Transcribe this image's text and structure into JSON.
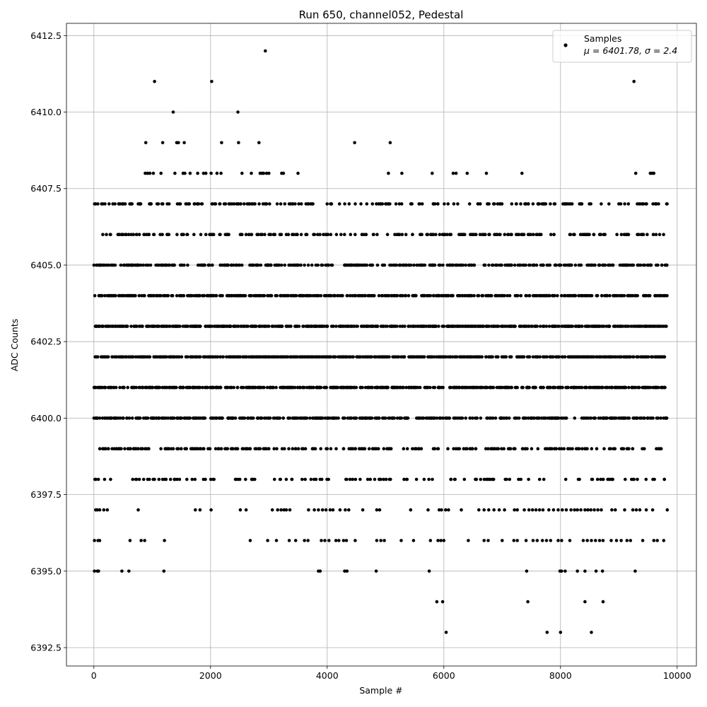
{
  "chart_data": {
    "type": "scatter",
    "title": "Run 650, channel052, Pedestal",
    "xlabel": "Sample #",
    "ylabel": "ADC Counts",
    "xlim": [
      -470,
      10330
    ],
    "ylim": [
      6391.9,
      6412.9
    ],
    "xticks": [
      0,
      2000,
      4000,
      6000,
      8000,
      10000
    ],
    "yticks": [
      6392.5,
      6395.0,
      6397.5,
      6400.0,
      6402.5,
      6405.0,
      6407.5,
      6410.0,
      6412.5
    ],
    "xtick_labels": [
      "0",
      "2000",
      "4000",
      "6000",
      "8000",
      "10000"
    ],
    "ytick_labels": [
      "6392.5",
      "6395.0",
      "6397.5",
      "6400.0",
      "6402.5",
      "6405.0",
      "6407.5",
      "6410.0",
      "6412.5"
    ],
    "grid": true,
    "legend_placement": "top-right",
    "marker_color": "#000000",
    "series": [
      {
        "name": "Samples",
        "label_line2": "μ = 6401.78, σ = 2.4",
        "points": [
          [
            2940,
            6412
          ],
          [
            1040,
            6411
          ],
          [
            2020,
            6411
          ],
          [
            9260,
            6411
          ],
          [
            1360,
            6410
          ],
          [
            2470,
            6410
          ],
          [
            890,
            6409
          ],
          [
            1180,
            6409
          ],
          [
            1420,
            6409
          ],
          [
            1450,
            6409
          ],
          [
            1550,
            6409
          ],
          [
            2190,
            6409
          ],
          [
            2480,
            6409
          ],
          [
            2830,
            6409
          ],
          [
            4470,
            6409
          ],
          [
            5080,
            6409
          ],
          [
            880,
            6408
          ],
          [
            920,
            6408
          ],
          [
            960,
            6408
          ],
          [
            1020,
            6408
          ],
          [
            1150,
            6408
          ],
          [
            1390,
            6408
          ],
          [
            1530,
            6408
          ],
          [
            1560,
            6408
          ],
          [
            1650,
            6408
          ],
          [
            1780,
            6408
          ],
          [
            1880,
            6408
          ],
          [
            1920,
            6408
          ],
          [
            2010,
            6408
          ],
          [
            2110,
            6408
          ],
          [
            2180,
            6408
          ],
          [
            2540,
            6408
          ],
          [
            2700,
            6408
          ],
          [
            2850,
            6408
          ],
          [
            2880,
            6408
          ],
          [
            2910,
            6408
          ],
          [
            2960,
            6408
          ],
          [
            3000,
            6408
          ],
          [
            3220,
            6408
          ],
          [
            3250,
            6408
          ],
          [
            3500,
            6408
          ],
          [
            5050,
            6408
          ],
          [
            5280,
            6408
          ],
          [
            5800,
            6408
          ],
          [
            6160,
            6408
          ],
          [
            6210,
            6408
          ],
          [
            6400,
            6408
          ],
          [
            6730,
            6408
          ],
          [
            7340,
            6408
          ],
          [
            9290,
            6408
          ],
          [
            9540,
            6408
          ],
          [
            9570,
            6408
          ],
          [
            9600,
            6408
          ],
          [
            6040,
            6393
          ],
          [
            7770,
            6393
          ],
          [
            8000,
            6393
          ],
          [
            8530,
            6393
          ],
          [
            5880,
            6394
          ],
          [
            5980,
            6394
          ],
          [
            7440,
            6394
          ],
          [
            8420,
            6394
          ],
          [
            8730,
            6394
          ],
          [
            10,
            6395
          ],
          [
            60,
            6395
          ],
          [
            80,
            6395
          ],
          [
            480,
            6395
          ],
          [
            600,
            6395
          ],
          [
            1200,
            6395
          ],
          [
            3850,
            6395
          ],
          [
            3880,
            6395
          ],
          [
            4300,
            6395
          ],
          [
            4340,
            6395
          ],
          [
            4840,
            6395
          ],
          [
            5750,
            6395
          ],
          [
            7420,
            6395
          ],
          [
            7990,
            6395
          ],
          [
            8020,
            6395
          ],
          [
            8080,
            6395
          ],
          [
            8290,
            6395
          ],
          [
            8420,
            6395
          ],
          [
            8610,
            6395
          ],
          [
            8720,
            6395
          ],
          [
            9280,
            6395
          ],
          [
            10,
            6396
          ],
          [
            70,
            6396
          ],
          [
            100,
            6396
          ],
          [
            620,
            6396
          ],
          [
            810,
            6396
          ],
          [
            870,
            6396
          ],
          [
            1210,
            6396
          ],
          [
            2680,
            6396
          ],
          [
            2980,
            6396
          ],
          [
            3130,
            6396
          ],
          [
            3350,
            6396
          ],
          [
            3460,
            6396
          ],
          [
            3610,
            6396
          ],
          [
            3670,
            6396
          ],
          [
            3900,
            6396
          ],
          [
            3960,
            6396
          ],
          [
            4030,
            6396
          ],
          [
            4150,
            6396
          ],
          [
            4200,
            6396
          ],
          [
            4280,
            6396
          ],
          [
            4330,
            6396
          ],
          [
            4480,
            6396
          ],
          [
            4850,
            6396
          ],
          [
            4920,
            6396
          ],
          [
            4980,
            6396
          ],
          [
            5270,
            6396
          ],
          [
            5480,
            6396
          ],
          [
            5770,
            6396
          ],
          [
            5900,
            6396
          ],
          [
            5950,
            6396
          ],
          [
            6000,
            6396
          ],
          [
            6420,
            6396
          ],
          [
            6690,
            6396
          ],
          [
            6760,
            6396
          ],
          [
            7000,
            6396
          ],
          [
            7200,
            6396
          ],
          [
            7260,
            6396
          ],
          [
            7410,
            6396
          ],
          [
            7530,
            6396
          ],
          [
            7600,
            6396
          ],
          [
            7690,
            6396
          ],
          [
            7760,
            6396
          ],
          [
            7830,
            6396
          ],
          [
            7960,
            6396
          ],
          [
            8020,
            6396
          ],
          [
            8160,
            6396
          ],
          [
            8390,
            6396
          ],
          [
            8460,
            6396
          ],
          [
            8530,
            6396
          ],
          [
            8600,
            6396
          ],
          [
            8670,
            6396
          ],
          [
            8730,
            6396
          ],
          [
            8870,
            6396
          ],
          [
            8960,
            6396
          ],
          [
            9040,
            6396
          ],
          [
            9140,
            6396
          ],
          [
            9200,
            6396
          ],
          [
            9410,
            6396
          ],
          [
            9600,
            6396
          ],
          [
            9660,
            6396
          ],
          [
            9770,
            6396
          ],
          [
            30,
            6397
          ],
          [
            60,
            6397
          ],
          [
            100,
            6397
          ],
          [
            170,
            6397
          ],
          [
            230,
            6397
          ],
          [
            760,
            6397
          ],
          [
            1740,
            6397
          ],
          [
            1820,
            6397
          ],
          [
            2010,
            6397
          ],
          [
            2510,
            6397
          ],
          [
            2610,
            6397
          ],
          [
            3060,
            6397
          ],
          [
            3150,
            6397
          ],
          [
            3210,
            6397
          ],
          [
            3260,
            6397
          ],
          [
            3300,
            6397
          ],
          [
            3360,
            6397
          ],
          [
            3680,
            6397
          ],
          [
            3780,
            6397
          ],
          [
            3850,
            6397
          ],
          [
            3920,
            6397
          ],
          [
            3980,
            6397
          ],
          [
            4050,
            6397
          ],
          [
            4100,
            6397
          ],
          [
            4220,
            6397
          ],
          [
            4310,
            6397
          ],
          [
            4370,
            6397
          ],
          [
            4610,
            6397
          ],
          [
            4850,
            6397
          ],
          [
            4900,
            6397
          ],
          [
            5430,
            6397
          ],
          [
            5730,
            6397
          ],
          [
            5920,
            6397
          ],
          [
            5960,
            6397
          ],
          [
            6030,
            6397
          ],
          [
            6080,
            6397
          ],
          [
            6300,
            6397
          ],
          [
            6600,
            6397
          ],
          [
            6690,
            6397
          ],
          [
            6770,
            6397
          ],
          [
            6860,
            6397
          ],
          [
            6950,
            6397
          ],
          [
            7040,
            6397
          ],
          [
            7210,
            6397
          ],
          [
            7260,
            6397
          ],
          [
            7380,
            6397
          ],
          [
            7460,
            6397
          ],
          [
            7520,
            6397
          ],
          [
            7580,
            6397
          ],
          [
            7640,
            6397
          ],
          [
            7700,
            6397
          ],
          [
            7800,
            6397
          ],
          [
            7880,
            6397
          ],
          [
            7960,
            6397
          ],
          [
            8030,
            6397
          ],
          [
            8100,
            6397
          ],
          [
            8180,
            6397
          ],
          [
            8240,
            6397
          ],
          [
            8290,
            6397
          ],
          [
            8350,
            6397
          ],
          [
            8420,
            6397
          ],
          [
            8470,
            6397
          ],
          [
            8520,
            6397
          ],
          [
            8580,
            6397
          ],
          [
            8640,
            6397
          ],
          [
            8700,
            6397
          ],
          [
            8880,
            6397
          ],
          [
            8940,
            6397
          ],
          [
            9100,
            6397
          ],
          [
            9240,
            6397
          ],
          [
            9300,
            6397
          ],
          [
            9360,
            6397
          ],
          [
            9470,
            6397
          ],
          [
            9580,
            6397
          ],
          [
            9830,
            6397
          ]
        ]
      }
    ],
    "dense_rows": [
      {
        "y": 6398,
        "count": 130,
        "seed": 101
      },
      {
        "y": 6399,
        "count": 260,
        "seed": 202
      },
      {
        "y": 6400,
        "count": 480,
        "seed": 303
      },
      {
        "y": 6401,
        "count": 600,
        "seed": 404
      },
      {
        "y": 6402,
        "count": 640,
        "seed": 505
      },
      {
        "y": 6403,
        "count": 620,
        "seed": 606
      },
      {
        "y": 6404,
        "count": 520,
        "seed": 707
      },
      {
        "y": 6405,
        "count": 380,
        "seed": 808
      },
      {
        "y": 6406,
        "count": 230,
        "seed": 909
      },
      {
        "y": 6407,
        "count": 210,
        "seed": 111
      }
    ],
    "x_data_range": [
      0,
      9830
    ]
  }
}
